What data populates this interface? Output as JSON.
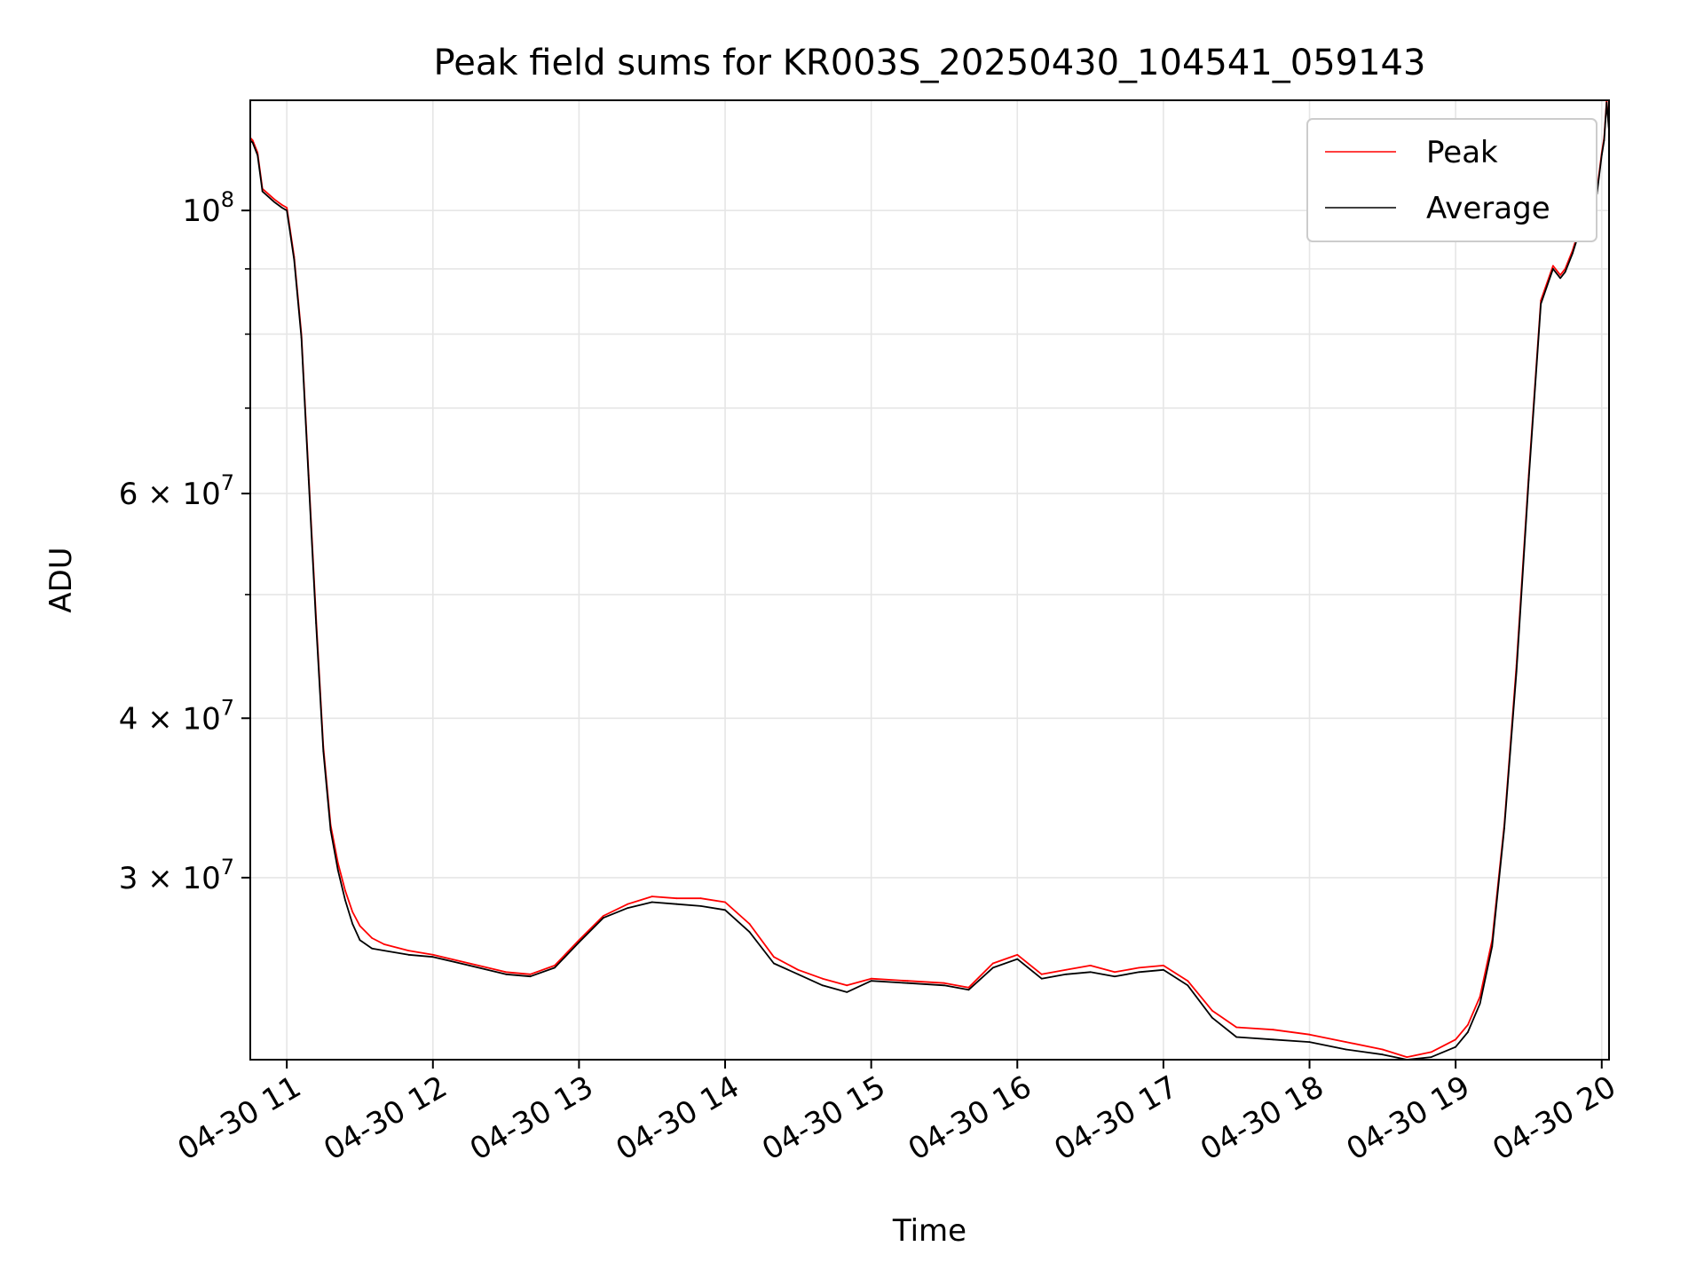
{
  "chart_data": {
    "type": "line",
    "title": "Peak field sums for KR003S_20250430_104541_059143",
    "xlabel": "Time",
    "ylabel": "ADU",
    "x_scale": "time",
    "y_scale": "log",
    "xlim": [
      "2025-04-30 10:45",
      "2025-04-30 20:03"
    ],
    "ylim": [
      21600000,
      122000000
    ],
    "grid": true,
    "legend_position": "top-right",
    "x_ticks": [
      {
        "t": "2025-04-30 11:00",
        "label": "04-30 11"
      },
      {
        "t": "2025-04-30 12:00",
        "label": "04-30 12"
      },
      {
        "t": "2025-04-30 13:00",
        "label": "04-30 13"
      },
      {
        "t": "2025-04-30 14:00",
        "label": "04-30 14"
      },
      {
        "t": "2025-04-30 15:00",
        "label": "04-30 15"
      },
      {
        "t": "2025-04-30 16:00",
        "label": "04-30 16"
      },
      {
        "t": "2025-04-30 17:00",
        "label": "04-30 17"
      },
      {
        "t": "2025-04-30 18:00",
        "label": "04-30 18"
      },
      {
        "t": "2025-04-30 19:00",
        "label": "04-30 19"
      },
      {
        "t": "2025-04-30 20:00",
        "label": "04-30 20"
      }
    ],
    "y_ticks": [
      {
        "value": 30000000,
        "label": "3 × 10^7",
        "mantissa": "3",
        "exp": "7"
      },
      {
        "value": 40000000,
        "label": "4 × 10^7",
        "mantissa": "4",
        "exp": "7"
      },
      {
        "value": 60000000,
        "label": "6 × 10^7",
        "mantissa": "6",
        "exp": "7"
      },
      {
        "value": 100000000,
        "label": "10^8",
        "mantissa": "",
        "exp": "8"
      }
    ],
    "y_minor_ticks": [
      50000000,
      70000000,
      80000000,
      90000000
    ],
    "series": [
      {
        "name": "Peak",
        "color": "#ff0000",
        "x": [
          "2025-04-30 10:45",
          "2025-04-30 10:46",
          "2025-04-30 10:48",
          "2025-04-30 10:50",
          "2025-04-30 10:55",
          "2025-04-30 10:58",
          "2025-04-30 11:00",
          "2025-04-30 11:03",
          "2025-04-30 11:06",
          "2025-04-30 11:09",
          "2025-04-30 11:12",
          "2025-04-30 11:15",
          "2025-04-30 11:18",
          "2025-04-30 11:21",
          "2025-04-30 11:24",
          "2025-04-30 11:27",
          "2025-04-30 11:30",
          "2025-04-30 11:35",
          "2025-04-30 11:40",
          "2025-04-30 11:50",
          "2025-04-30 12:00",
          "2025-04-30 12:15",
          "2025-04-30 12:30",
          "2025-04-30 12:40",
          "2025-04-30 12:50",
          "2025-04-30 13:00",
          "2025-04-30 13:10",
          "2025-04-30 13:20",
          "2025-04-30 13:30",
          "2025-04-30 13:40",
          "2025-04-30 13:50",
          "2025-04-30 14:00",
          "2025-04-30 14:10",
          "2025-04-30 14:20",
          "2025-04-30 14:30",
          "2025-04-30 14:40",
          "2025-04-30 14:50",
          "2025-04-30 15:00",
          "2025-04-30 15:15",
          "2025-04-30 15:30",
          "2025-04-30 15:40",
          "2025-04-30 15:50",
          "2025-04-30 16:00",
          "2025-04-30 16:10",
          "2025-04-30 16:20",
          "2025-04-30 16:30",
          "2025-04-30 16:40",
          "2025-04-30 16:50",
          "2025-04-30 17:00",
          "2025-04-30 17:10",
          "2025-04-30 17:20",
          "2025-04-30 17:30",
          "2025-04-30 17:45",
          "2025-04-30 18:00",
          "2025-04-30 18:15",
          "2025-04-30 18:30",
          "2025-04-30 18:40",
          "2025-04-30 18:50",
          "2025-04-30 19:00",
          "2025-04-30 19:05",
          "2025-04-30 19:10",
          "2025-04-30 19:15",
          "2025-04-30 19:20",
          "2025-04-30 19:25",
          "2025-04-30 19:30",
          "2025-04-30 19:35",
          "2025-04-30 19:40",
          "2025-04-30 19:43",
          "2025-04-30 19:45",
          "2025-04-30 19:48",
          "2025-04-30 19:51",
          "2025-04-30 19:54",
          "2025-04-30 19:56",
          "2025-04-30 19:58",
          "2025-04-30 20:00",
          "2025-04-30 20:01",
          "2025-04-30 20:02",
          "2025-04-30 20:03"
        ],
        "values": [
          114000000,
          113500000,
          111000000,
          104000000,
          102000000,
          101000000,
          100500000,
          92000000,
          80000000,
          62000000,
          48000000,
          38000000,
          33000000,
          30800000,
          29300000,
          28200000,
          27500000,
          26900000,
          26600000,
          26300000,
          26100000,
          25700000,
          25300000,
          25200000,
          25600000,
          26800000,
          28000000,
          28600000,
          29000000,
          28900000,
          28900000,
          28700000,
          27600000,
          26000000,
          25400000,
          25000000,
          24700000,
          25000000,
          24900000,
          24800000,
          24600000,
          25700000,
          26100000,
          25200000,
          25400000,
          25600000,
          25300000,
          25500000,
          25600000,
          24900000,
          23600000,
          22900000,
          22800000,
          22600000,
          22300000,
          22000000,
          21700000,
          21900000,
          22400000,
          23000000,
          24200000,
          26800000,
          33000000,
          44000000,
          62000000,
          85000000,
          90500000,
          89000000,
          90000000,
          93000000,
          97000000,
          100500000,
          102000000,
          103500000,
          111000000,
          114000000,
          122000000,
          116000000
        ]
      },
      {
        "name": "Average",
        "color": "#000000",
        "x": [
          "2025-04-30 10:45",
          "2025-04-30 10:46",
          "2025-04-30 10:48",
          "2025-04-30 10:50",
          "2025-04-30 10:55",
          "2025-04-30 10:58",
          "2025-04-30 11:00",
          "2025-04-30 11:03",
          "2025-04-30 11:06",
          "2025-04-30 11:09",
          "2025-04-30 11:12",
          "2025-04-30 11:15",
          "2025-04-30 11:18",
          "2025-04-30 11:21",
          "2025-04-30 11:24",
          "2025-04-30 11:27",
          "2025-04-30 11:30",
          "2025-04-30 11:35",
          "2025-04-30 11:40",
          "2025-04-30 11:50",
          "2025-04-30 12:00",
          "2025-04-30 12:15",
          "2025-04-30 12:30",
          "2025-04-30 12:40",
          "2025-04-30 12:50",
          "2025-04-30 13:00",
          "2025-04-30 13:10",
          "2025-04-30 13:20",
          "2025-04-30 13:30",
          "2025-04-30 13:40",
          "2025-04-30 13:50",
          "2025-04-30 14:00",
          "2025-04-30 14:10",
          "2025-04-30 14:20",
          "2025-04-30 14:30",
          "2025-04-30 14:40",
          "2025-04-30 14:50",
          "2025-04-30 15:00",
          "2025-04-30 15:15",
          "2025-04-30 15:30",
          "2025-04-30 15:40",
          "2025-04-30 15:50",
          "2025-04-30 16:00",
          "2025-04-30 16:10",
          "2025-04-30 16:20",
          "2025-04-30 16:30",
          "2025-04-30 16:40",
          "2025-04-30 16:50",
          "2025-04-30 17:00",
          "2025-04-30 17:10",
          "2025-04-30 17:20",
          "2025-04-30 17:30",
          "2025-04-30 17:45",
          "2025-04-30 18:00",
          "2025-04-30 18:15",
          "2025-04-30 18:30",
          "2025-04-30 18:40",
          "2025-04-30 18:50",
          "2025-04-30 19:00",
          "2025-04-30 19:05",
          "2025-04-30 19:10",
          "2025-04-30 19:15",
          "2025-04-30 19:20",
          "2025-04-30 19:25",
          "2025-04-30 19:30",
          "2025-04-30 19:35",
          "2025-04-30 19:40",
          "2025-04-30 19:43",
          "2025-04-30 19:45",
          "2025-04-30 19:48",
          "2025-04-30 19:51",
          "2025-04-30 19:54",
          "2025-04-30 19:56",
          "2025-04-30 19:58",
          "2025-04-30 20:00",
          "2025-04-30 20:01",
          "2025-04-30 20:02",
          "2025-04-30 20:03"
        ],
        "values": [
          113500000,
          113000000,
          110500000,
          103500000,
          101500000,
          100500000,
          100000000,
          91500000,
          79500000,
          61500000,
          47500000,
          37700000,
          32700000,
          30400000,
          28800000,
          27600000,
          26800000,
          26400000,
          26300000,
          26100000,
          26000000,
          25600000,
          25200000,
          25100000,
          25500000,
          26700000,
          27900000,
          28400000,
          28700000,
          28600000,
          28500000,
          28300000,
          27200000,
          25700000,
          25200000,
          24700000,
          24400000,
          24900000,
          24800000,
          24700000,
          24500000,
          25500000,
          25900000,
          25000000,
          25200000,
          25300000,
          25100000,
          25300000,
          25400000,
          24700000,
          23300000,
          22500000,
          22400000,
          22300000,
          22000000,
          21800000,
          21600000,
          21700000,
          22100000,
          22700000,
          23900000,
          26500000,
          32800000,
          43500000,
          61500000,
          84500000,
          90000000,
          88500000,
          89500000,
          92500000,
          96500000,
          100000000,
          101500000,
          103000000,
          110500000,
          113500000,
          121500000,
          115500000
        ]
      }
    ]
  }
}
